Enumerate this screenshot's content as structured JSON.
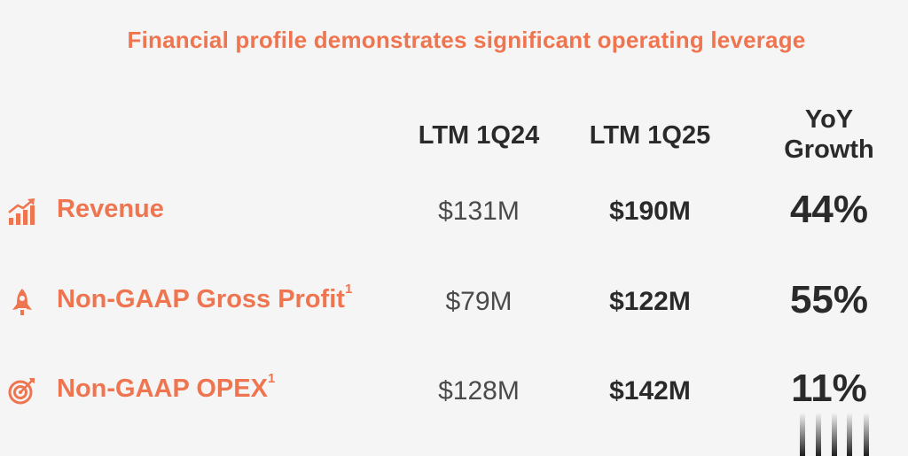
{
  "title": "Financial profile demonstrates significant operating leverage",
  "columns": {
    "c1": "LTM 1Q24",
    "c2": "LTM 1Q25",
    "c3_line1": "YoY",
    "c3_line2": "Growth"
  },
  "rows": [
    {
      "label": "Revenue",
      "footnote": "",
      "icon": "chart-growth-icon",
      "c1": "$131M",
      "c2": "$190M",
      "growth": "44%"
    },
    {
      "label": "Non-GAAP Gross Profit",
      "footnote": "1",
      "icon": "rocket-icon",
      "c1": "$79M",
      "c2": "$122M",
      "growth": "55%"
    },
    {
      "label": "Non-GAAP OPEX",
      "footnote": "1",
      "icon": "target-icon",
      "c1": "$128M",
      "c2": "$142M",
      "growth": "11%"
    }
  ],
  "colors": {
    "accent": "#ee7550",
    "text": "#2a2a2a",
    "background": "#f5f5f5"
  }
}
